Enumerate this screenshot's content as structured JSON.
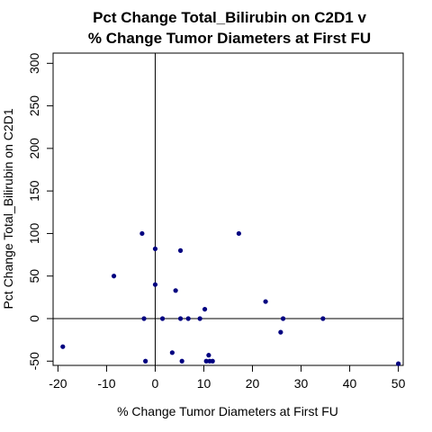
{
  "chart_data": {
    "type": "scatter",
    "title": [
      "Pct Change Total_Bilirubin on C2D1 v",
      "% Change Tumor Diameters at First FU"
    ],
    "xlabel": "% Change Tumor Diameters at First FU",
    "ylabel": "Pct Change Total_Bilirubin on C2D1",
    "xlim": [
      -21,
      51
    ],
    "ylim": [
      -55,
      312
    ],
    "x_ticks": [
      -20,
      -10,
      0,
      10,
      20,
      30,
      40,
      50
    ],
    "y_ticks": [
      -50,
      0,
      50,
      100,
      150,
      200,
      250,
      300
    ],
    "reference_lines": {
      "x": 0,
      "y": 0
    },
    "grid": false,
    "legend": "none",
    "point_color": "#000080",
    "points": [
      {
        "x": -19,
        "y": -33
      },
      {
        "x": -8.5,
        "y": 50
      },
      {
        "x": -2.7,
        "y": 100
      },
      {
        "x": -2.3,
        "y": 0
      },
      {
        "x": -2,
        "y": -50
      },
      {
        "x": 0,
        "y": 82
      },
      {
        "x": 0,
        "y": 40
      },
      {
        "x": 1.5,
        "y": 0
      },
      {
        "x": 3.5,
        "y": -40
      },
      {
        "x": 4.2,
        "y": 33
      },
      {
        "x": 5.2,
        "y": 80
      },
      {
        "x": 5.2,
        "y": 0
      },
      {
        "x": 5.5,
        "y": -50
      },
      {
        "x": 6.8,
        "y": 0
      },
      {
        "x": 9.2,
        "y": 0
      },
      {
        "x": 10.2,
        "y": 11
      },
      {
        "x": 10.5,
        "y": -50
      },
      {
        "x": 11,
        "y": -43
      },
      {
        "x": 11.2,
        "y": -50
      },
      {
        "x": 11.8,
        "y": -50
      },
      {
        "x": 17.2,
        "y": 100
      },
      {
        "x": 22.7,
        "y": 20
      },
      {
        "x": 25.8,
        "y": -16
      },
      {
        "x": 26.3,
        "y": 0
      },
      {
        "x": 34.5,
        "y": 0
      },
      {
        "x": 50,
        "y": -53
      }
    ]
  }
}
